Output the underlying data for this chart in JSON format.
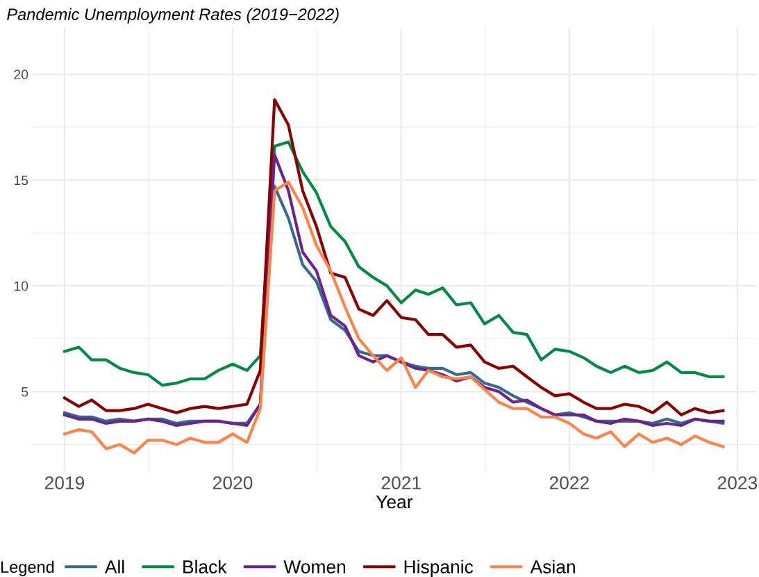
{
  "chart_data": {
    "type": "line",
    "title": "Pandemic Unemployment Rates (2019−2022)",
    "xlabel": "Year",
    "legend_title": "Legend",
    "legend": "bottom",
    "grid": true,
    "line_style": "solid",
    "x": [
      "2019-01",
      "2019-02",
      "2019-03",
      "2019-04",
      "2019-05",
      "2019-06",
      "2019-07",
      "2019-08",
      "2019-09",
      "2019-10",
      "2019-11",
      "2019-12",
      "2020-01",
      "2020-02",
      "2020-03",
      "2020-04",
      "2020-05",
      "2020-06",
      "2020-07",
      "2020-08",
      "2020-09",
      "2020-10",
      "2020-11",
      "2020-12",
      "2021-01",
      "2021-02",
      "2021-03",
      "2021-04",
      "2021-05",
      "2021-06",
      "2021-07",
      "2021-08",
      "2021-09",
      "2021-10",
      "2021-11",
      "2021-12",
      "2022-01",
      "2022-02",
      "2022-03",
      "2022-04",
      "2022-05",
      "2022-06",
      "2022-07",
      "2022-08",
      "2022-09",
      "2022-10",
      "2022-11",
      "2022-12"
    ],
    "xlim": [
      "2018-10-22",
      "2023-02-12"
    ],
    "xticks": [
      {
        "value": "2019-01-01",
        "label": "2019"
      },
      {
        "value": "2020-01-01",
        "label": "2020"
      },
      {
        "value": "2021-01-01",
        "label": "2021"
      },
      {
        "value": "2022-01-01",
        "label": "2022"
      },
      {
        "value": "2023-01-01",
        "label": "2023"
      }
    ],
    "ylim": [
      1.2,
      22.2
    ],
    "yticks": [
      5,
      10,
      15,
      20
    ],
    "series": [
      {
        "name": "All",
        "color": "#336b8f",
        "values": [
          4.0,
          3.8,
          3.8,
          3.6,
          3.7,
          3.6,
          3.7,
          3.7,
          3.5,
          3.6,
          3.6,
          3.6,
          3.5,
          3.5,
          4.4,
          14.7,
          13.2,
          11.0,
          10.2,
          8.4,
          7.9,
          6.9,
          6.7,
          6.7,
          6.4,
          6.2,
          6.1,
          6.1,
          5.8,
          5.9,
          5.4,
          5.2,
          4.8,
          4.5,
          4.2,
          3.9,
          4.0,
          3.8,
          3.6,
          3.6,
          3.6,
          3.6,
          3.5,
          3.7,
          3.5,
          3.7,
          3.6,
          3.5
        ]
      },
      {
        "name": "Black",
        "color": "#008b45",
        "values": [
          6.9,
          7.1,
          6.5,
          6.5,
          6.1,
          5.9,
          5.8,
          5.3,
          5.4,
          5.6,
          5.6,
          6.0,
          6.3,
          6.0,
          6.7,
          16.6,
          16.8,
          15.4,
          14.4,
          12.8,
          12.1,
          10.9,
          10.4,
          10.0,
          9.2,
          9.8,
          9.6,
          9.9,
          9.1,
          9.2,
          8.2,
          8.6,
          7.8,
          7.7,
          6.5,
          7.0,
          6.9,
          6.6,
          6.2,
          5.9,
          6.2,
          5.9,
          6.0,
          6.4,
          5.9,
          5.9,
          5.7,
          5.7
        ]
      },
      {
        "name": "Women",
        "color": "#6a238f",
        "values": [
          3.9,
          3.7,
          3.7,
          3.5,
          3.6,
          3.6,
          3.7,
          3.6,
          3.4,
          3.5,
          3.6,
          3.6,
          3.5,
          3.4,
          4.4,
          16.2,
          14.5,
          11.6,
          10.7,
          8.6,
          8.1,
          6.7,
          6.4,
          6.7,
          6.4,
          6.1,
          6.0,
          5.8,
          5.5,
          5.7,
          5.2,
          5.0,
          4.5,
          4.6,
          4.2,
          3.9,
          3.9,
          3.9,
          3.6,
          3.5,
          3.7,
          3.6,
          3.4,
          3.5,
          3.4,
          3.7,
          3.6,
          3.6
        ]
      },
      {
        "name": "Hispanic",
        "color": "#8b0000",
        "values": [
          4.7,
          4.3,
          4.6,
          4.1,
          4.1,
          4.2,
          4.4,
          4.2,
          4.0,
          4.2,
          4.3,
          4.2,
          4.3,
          4.4,
          6.0,
          18.8,
          17.6,
          14.5,
          12.8,
          10.6,
          10.4,
          8.9,
          8.6,
          9.3,
          8.5,
          8.4,
          7.7,
          7.7,
          7.1,
          7.2,
          6.4,
          6.1,
          6.2,
          5.7,
          5.2,
          4.8,
          4.9,
          4.5,
          4.2,
          4.2,
          4.4,
          4.3,
          4.0,
          4.5,
          3.9,
          4.2,
          4.0,
          4.1
        ]
      },
      {
        "name": "Asian",
        "color": "#ff8247",
        "values": [
          3.0,
          3.2,
          3.1,
          2.3,
          2.5,
          2.1,
          2.7,
          2.7,
          2.5,
          2.8,
          2.6,
          2.6,
          3.0,
          2.6,
          4.2,
          14.5,
          14.9,
          13.7,
          11.9,
          10.7,
          9.0,
          7.5,
          6.7,
          6.0,
          6.6,
          5.2,
          6.0,
          5.7,
          5.6,
          5.7,
          5.1,
          4.5,
          4.2,
          4.2,
          3.8,
          3.8,
          3.5,
          3.0,
          2.8,
          3.1,
          2.4,
          3.0,
          2.6,
          2.8,
          2.5,
          2.9,
          2.6,
          2.4
        ]
      }
    ]
  }
}
